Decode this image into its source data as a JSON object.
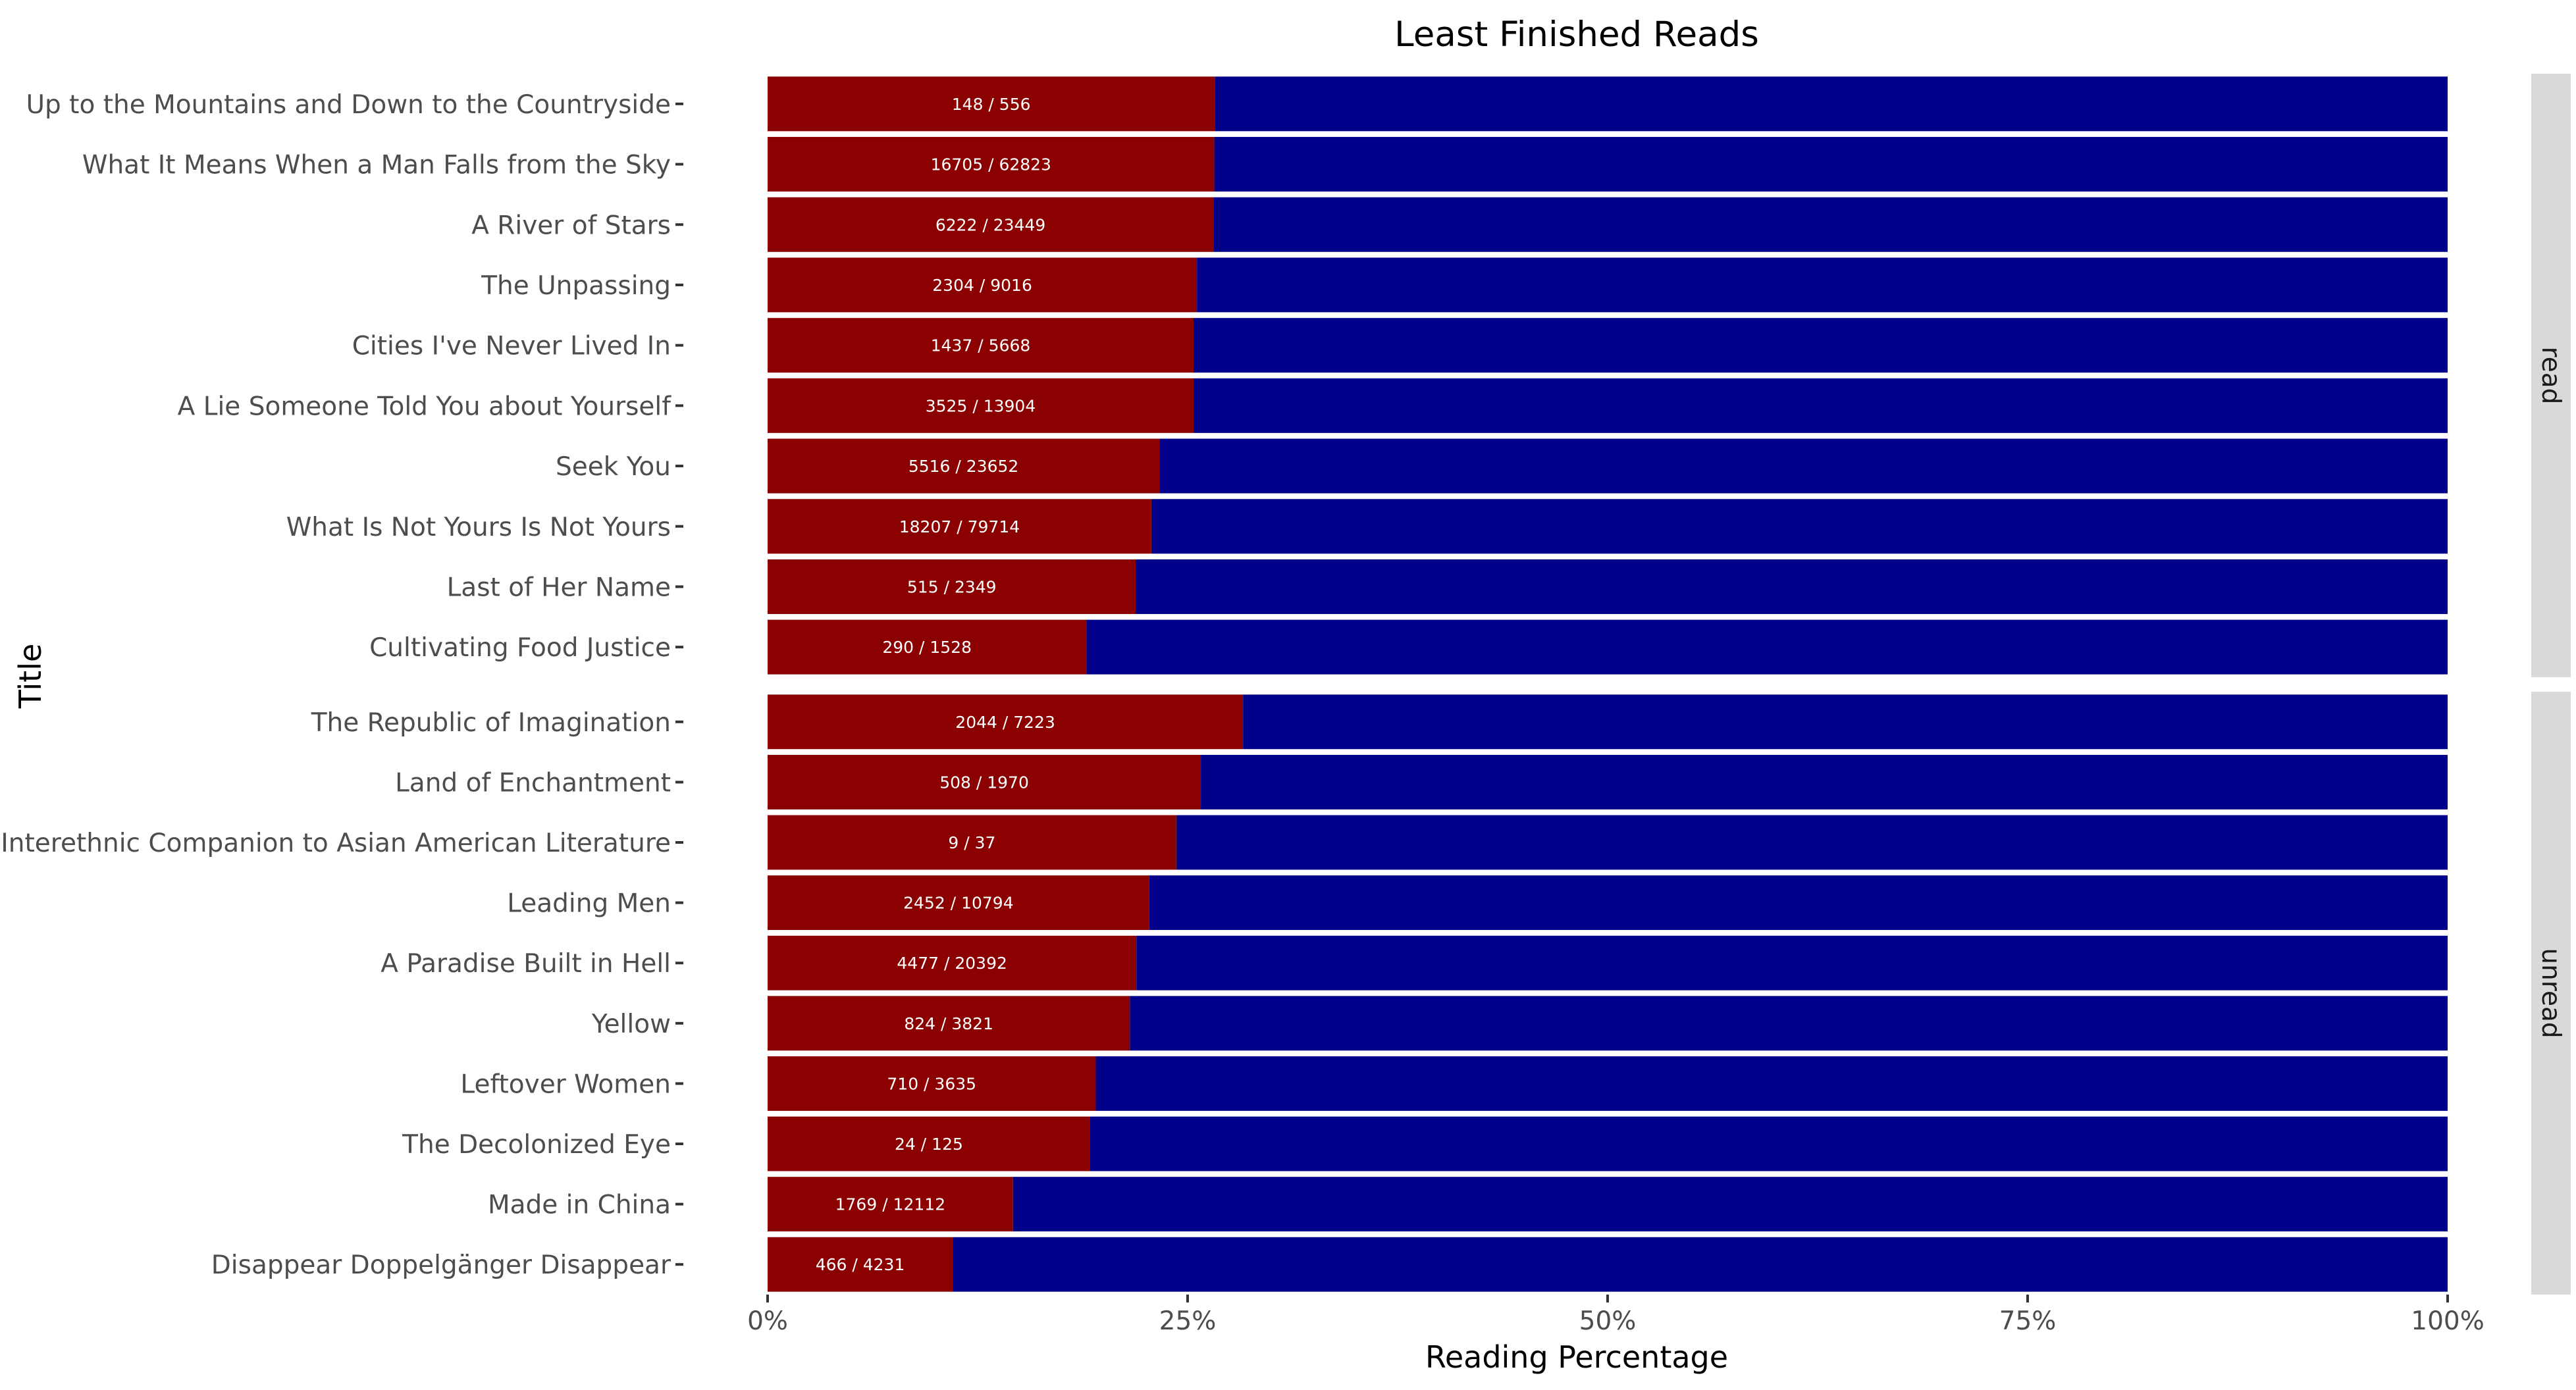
{
  "chart_data": {
    "type": "bar",
    "orientation": "horizontal",
    "stacked": "percent",
    "title": "Least Finished Reads",
    "xlabel": "Reading Percentage",
    "ylabel": "Title",
    "xlim": [
      0,
      100
    ],
    "x_ticks": [
      "0%",
      "25%",
      "50%",
      "75%",
      "100%"
    ],
    "colors": {
      "finished": "#8b0000",
      "remaining": "#00008b",
      "strip": "#d9d9d9"
    },
    "grid": false,
    "legend": "none",
    "facets": [
      {
        "label": "read",
        "rows": [
          {
            "title": "Up to the Mountains and Down to the Countryside",
            "finished": 148,
            "total": 556,
            "label": "148 / 556"
          },
          {
            "title": "What It Means When a Man Falls from the Sky",
            "finished": 16705,
            "total": 62823,
            "label": "16705 / 62823"
          },
          {
            "title": "A River of Stars",
            "finished": 6222,
            "total": 23449,
            "label": "6222 / 23449"
          },
          {
            "title": "The Unpassing",
            "finished": 2304,
            "total": 9016,
            "label": "2304 / 9016"
          },
          {
            "title": "Cities I've Never Lived In",
            "finished": 1437,
            "total": 5668,
            "label": "1437 / 5668"
          },
          {
            "title": "A Lie Someone Told You about Yourself",
            "finished": 3525,
            "total": 13904,
            "label": "3525 / 13904"
          },
          {
            "title": "Seek You",
            "finished": 5516,
            "total": 23652,
            "label": "5516 / 23652"
          },
          {
            "title": "What Is Not Yours Is Not Yours",
            "finished": 18207,
            "total": 79714,
            "label": "18207 / 79714"
          },
          {
            "title": "Last of Her Name",
            "finished": 515,
            "total": 2349,
            "label": "515 / 2349"
          },
          {
            "title": "Cultivating Food Justice",
            "finished": 290,
            "total": 1528,
            "label": "290 / 1528"
          }
        ]
      },
      {
        "label": "unread",
        "rows": [
          {
            "title": "The Republic of Imagination",
            "finished": 2044,
            "total": 7223,
            "label": "2044 / 7223"
          },
          {
            "title": "Land of Enchantment",
            "finished": 508,
            "total": 1970,
            "label": "508 / 1970"
          },
          {
            "title": "Interethnic Companion to Asian American Literature",
            "finished": 9,
            "total": 37,
            "label": "9 / 37"
          },
          {
            "title": "Leading Men",
            "finished": 2452,
            "total": 10794,
            "label": "2452 / 10794"
          },
          {
            "title": "A Paradise Built in Hell",
            "finished": 4477,
            "total": 20392,
            "label": "4477 / 20392"
          },
          {
            "title": "Yellow",
            "finished": 824,
            "total": 3821,
            "label": "824 / 3821"
          },
          {
            "title": "Leftover Women",
            "finished": 710,
            "total": 3635,
            "label": "710 / 3635"
          },
          {
            "title": "The Decolonized Eye",
            "finished": 24,
            "total": 125,
            "label": "24 / 125"
          },
          {
            "title": "Made in China",
            "finished": 1769,
            "total": 12112,
            "label": "1769 / 12112"
          },
          {
            "title": "Disappear Doppelgänger Disappear",
            "finished": 466,
            "total": 4231,
            "label": "466 / 4231"
          }
        ]
      }
    ]
  }
}
